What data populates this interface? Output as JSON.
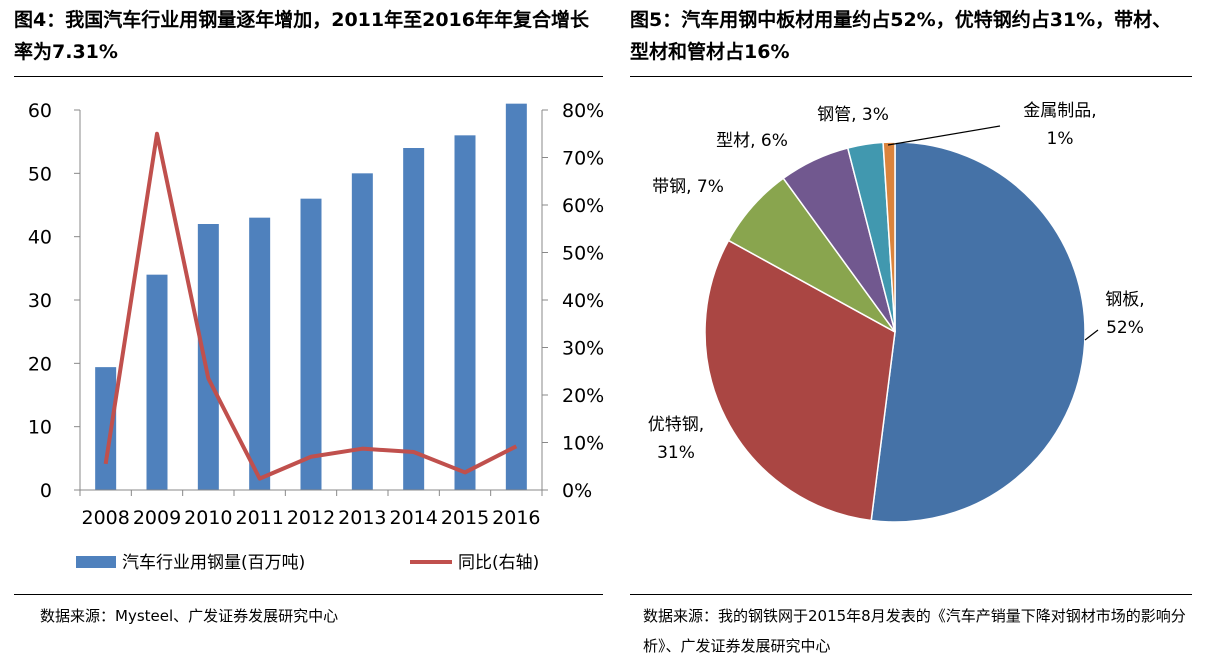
{
  "left_title": "图4：我国汽车行业用钢量逐年增加，2011年至2016年年复合增长率为7.31%",
  "right_title": "图5：汽车用钢中板材用量约占52%，优特钢约占31%，带材、型材和管材占16%",
  "left_source": "数据来源：Mysteel、广发证券发展研究中心",
  "right_source": "数据来源：我的钢铁网于2015年8月发表的《汽车产销量下降对钢材市场的影响分析》、广发证券发展研究中心",
  "colors": {
    "bar": "#4F81BD",
    "line": "#C0504D",
    "pie": [
      "#4572A7",
      "#AA4643",
      "#89A54E",
      "#71588F",
      "#4198AF",
      "#DB843D"
    ]
  },
  "chart_data": [
    {
      "type": "bar",
      "categories": [
        "2008",
        "2009",
        "2010",
        "2011",
        "2012",
        "2013",
        "2014",
        "2015",
        "2016"
      ],
      "series": [
        {
          "name": "汽车行业用钢量(百万吨)",
          "type": "bar",
          "axis": "left",
          "values": [
            19.4,
            34,
            42,
            43,
            46,
            50,
            54,
            56,
            61
          ]
        },
        {
          "name": "同比(右轴)",
          "type": "line",
          "axis": "right",
          "values": [
            5.5,
            75,
            23.5,
            2.4,
            7,
            8.7,
            8,
            3.7,
            9.2
          ]
        }
      ],
      "y_left": {
        "range": [
          0,
          60
        ],
        "ticks": [
          "0",
          "10",
          "20",
          "30",
          "40",
          "50",
          "60"
        ]
      },
      "y_right": {
        "range": [
          0,
          80
        ],
        "ticks": [
          "0%",
          "10%",
          "20%",
          "30%",
          "40%",
          "50%",
          "60%",
          "70%",
          "80%"
        ]
      },
      "legend": "bottom",
      "grid": false
    },
    {
      "type": "pie",
      "slices": [
        {
          "name": "钢板",
          "value": 52,
          "label": "钢板,\n52%"
        },
        {
          "name": "优特钢",
          "value": 31,
          "label": "优特钢,\n31%"
        },
        {
          "name": "带钢",
          "value": 7,
          "label": "带钢, 7%"
        },
        {
          "name": "型材",
          "value": 6,
          "label": "型材, 6%"
        },
        {
          "name": "钢管",
          "value": 3,
          "label": "钢管, 3%"
        },
        {
          "name": "金属制品",
          "value": 1,
          "label": "金属制品,\n1%"
        }
      ],
      "start": "12 o'clock",
      "direction": "clockwise",
      "legend": "none"
    }
  ]
}
